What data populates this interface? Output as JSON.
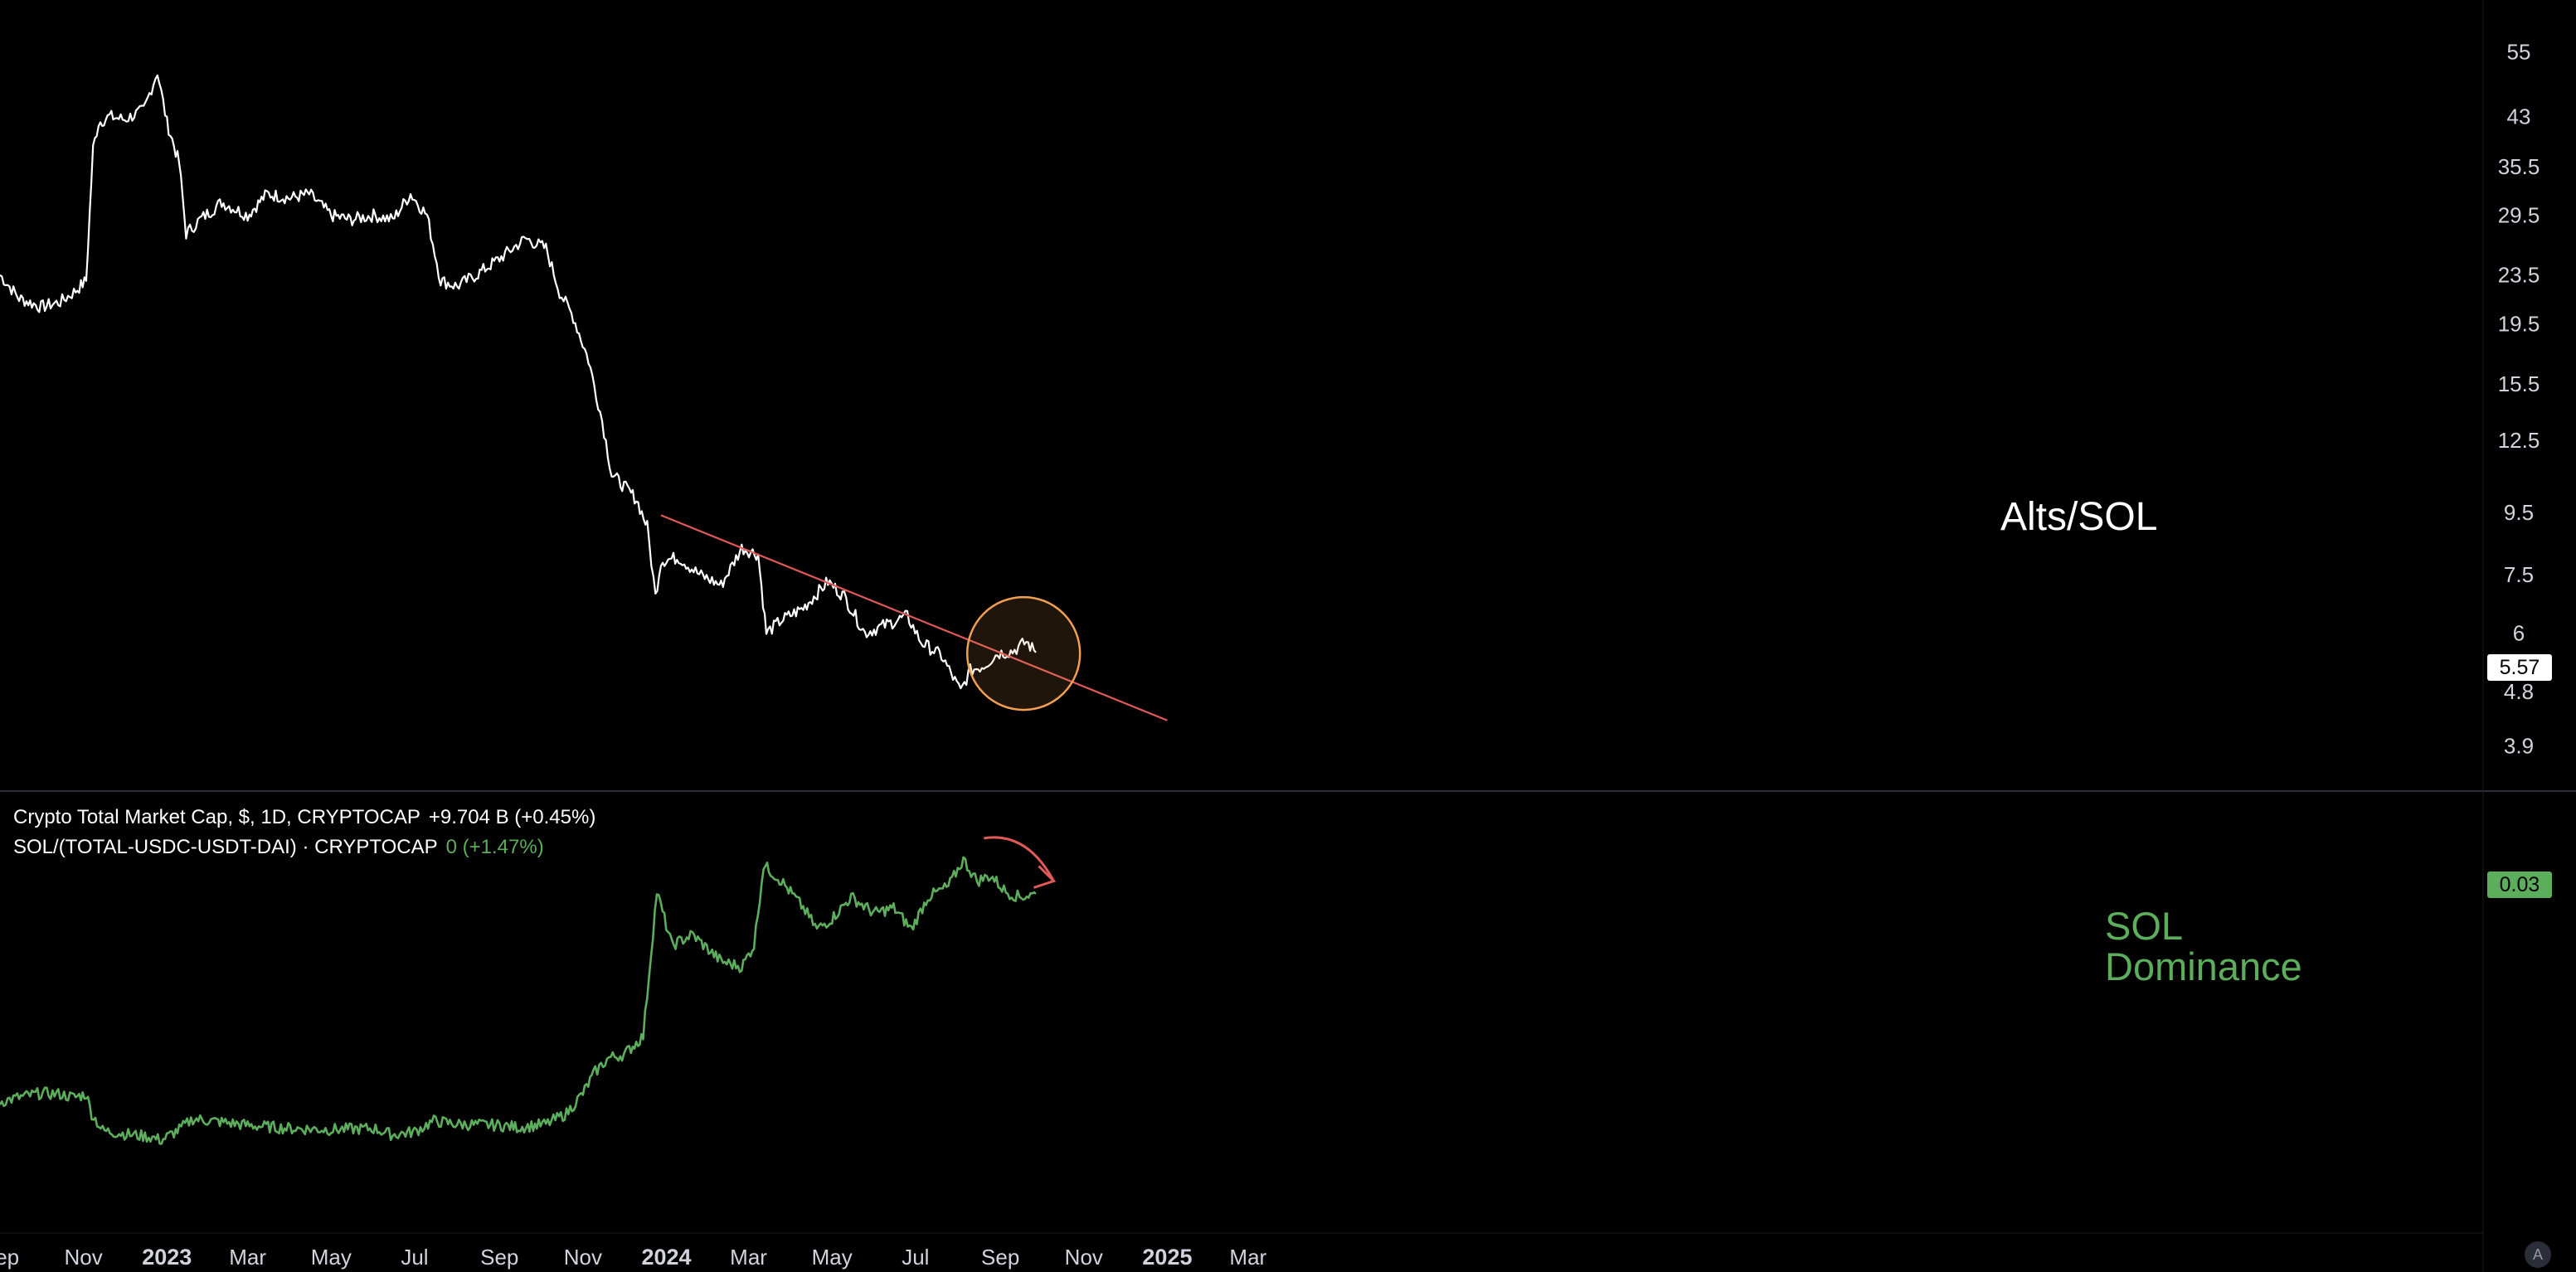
{
  "chart_data": [
    {
      "type": "line",
      "title": "Alts/SOL",
      "scale": "log",
      "ylim": [
        3.6,
        60
      ],
      "y_ticks": [
        "55",
        "43",
        "35.5",
        "29.5",
        "23.5",
        "19.5",
        "15.5",
        "12.5",
        "9.5",
        "7.5",
        "6",
        "4.8",
        "3.9"
      ],
      "last_value_label": "5.57",
      "x_start": "2022-09",
      "series": [
        {
          "name": "Crypto Total Market Cap, $, 1D, CRYPTOCAP",
          "color": "#ffffff",
          "points": [
            [
              "2022-09-01",
              23.5
            ],
            [
              "2022-09-15",
              21.5
            ],
            [
              "2022-10-01",
              20.8
            ],
            [
              "2022-10-15",
              21.2
            ],
            [
              "2022-10-25",
              22.0
            ],
            [
              "2022-11-03",
              23.0
            ],
            [
              "2022-11-08",
              38.0
            ],
            [
              "2022-11-12",
              42.0
            ],
            [
              "2022-11-20",
              43.0
            ],
            [
              "2022-12-01",
              42.5
            ],
            [
              "2022-12-15",
              44.0
            ],
            [
              "2022-12-25",
              51.0
            ],
            [
              "2023-01-01",
              42.0
            ],
            [
              "2023-01-10",
              36.0
            ],
            [
              "2023-01-15",
              27.5
            ],
            [
              "2023-01-25",
              29.0
            ],
            [
              "2023-02-10",
              31.0
            ],
            [
              "2023-03-01",
              29.5
            ],
            [
              "2023-03-15",
              32.0
            ],
            [
              "2023-04-01",
              31.5
            ],
            [
              "2023-04-15",
              32.0
            ],
            [
              "2023-05-01",
              29.5
            ],
            [
              "2023-05-15",
              29.0
            ],
            [
              "2023-06-01",
              29.5
            ],
            [
              "2023-06-15",
              29.0
            ],
            [
              "2023-06-28",
              32.0
            ],
            [
              "2023-07-10",
              29.5
            ],
            [
              "2023-07-20",
              23.0
            ],
            [
              "2023-08-01",
              22.5
            ],
            [
              "2023-08-15",
              23.5
            ],
            [
              "2023-09-01",
              25.0
            ],
            [
              "2023-09-20",
              27.0
            ],
            [
              "2023-10-05",
              26.0
            ],
            [
              "2023-10-15",
              22.0
            ],
            [
              "2023-10-25",
              20.0
            ],
            [
              "2023-11-05",
              17.0
            ],
            [
              "2023-11-15",
              13.5
            ],
            [
              "2023-11-22",
              11.0
            ],
            [
              "2023-12-01",
              10.5
            ],
            [
              "2023-12-10",
              10.0
            ],
            [
              "2023-12-18",
              9.0
            ],
            [
              "2023-12-24",
              6.9
            ],
            [
              "2023-12-28",
              7.9
            ],
            [
              "2024-01-10",
              8.0
            ],
            [
              "2024-01-25",
              7.5
            ],
            [
              "2024-02-10",
              7.2
            ],
            [
              "2024-02-25",
              8.3
            ],
            [
              "2024-03-08",
              8.1
            ],
            [
              "2024-03-14",
              6.0
            ],
            [
              "2024-03-25",
              6.3
            ],
            [
              "2024-04-10",
              6.6
            ],
            [
              "2024-04-28",
              7.3
            ],
            [
              "2024-05-10",
              6.9
            ],
            [
              "2024-05-25",
              6.0
            ],
            [
              "2024-06-10",
              6.2
            ],
            [
              "2024-06-25",
              6.4
            ],
            [
              "2024-07-05",
              5.8
            ],
            [
              "2024-07-20",
              5.5
            ],
            [
              "2024-08-03",
              4.8
            ],
            [
              "2024-08-10",
              5.2
            ],
            [
              "2024-08-20",
              5.3
            ],
            [
              "2024-08-30",
              5.55
            ],
            [
              "2024-09-10",
              5.6
            ],
            [
              "2024-09-20",
              5.8
            ],
            [
              "2024-09-27",
              5.57
            ]
          ]
        }
      ],
      "trendline": {
        "color": "#e05a5a",
        "from": [
          "2023-12-28",
          9.4
        ],
        "to": [
          "2025-01-01",
          4.3
        ]
      },
      "highlight_circle": {
        "center": [
          "2024-09-18",
          5.55
        ],
        "color": "#f0a050"
      }
    },
    {
      "type": "line",
      "title": "SOL Dominance",
      "title_lines": [
        "SOL",
        "Dominance"
      ],
      "ylim": [
        0,
        0.036
      ],
      "last_value_label": "0.03",
      "series": [
        {
          "name": "SOL/(TOTAL-USDC-USDT-DAI) · CRYPTOCAP",
          "color": "#5cad5c",
          "points": [
            [
              "2022-09-01",
              0.0094
            ],
            [
              "2022-09-15",
              0.0098
            ],
            [
              "2022-10-01",
              0.0102
            ],
            [
              "2022-10-15",
              0.0101
            ],
            [
              "2022-10-25",
              0.0098
            ],
            [
              "2022-11-03",
              0.0101
            ],
            [
              "2022-11-07",
              0.0083
            ],
            [
              "2022-11-15",
              0.0067
            ],
            [
              "2022-12-01",
              0.0064
            ],
            [
              "2022-12-20",
              0.0061
            ],
            [
              "2022-12-28",
              0.0058
            ],
            [
              "2023-01-10",
              0.0068
            ],
            [
              "2023-01-20",
              0.0078
            ],
            [
              "2023-02-10",
              0.0075
            ],
            [
              "2023-03-01",
              0.0072
            ],
            [
              "2023-04-01",
              0.0069
            ],
            [
              "2023-05-01",
              0.0068
            ],
            [
              "2023-06-01",
              0.0069
            ],
            [
              "2023-06-15",
              0.0063
            ],
            [
              "2023-07-01",
              0.0066
            ],
            [
              "2023-07-15",
              0.0076
            ],
            [
              "2023-08-01",
              0.0073
            ],
            [
              "2023-09-01",
              0.0072
            ],
            [
              "2023-09-15",
              0.007
            ],
            [
              "2023-10-05",
              0.0073
            ],
            [
              "2023-10-20",
              0.0083
            ],
            [
              "2023-11-01",
              0.0102
            ],
            [
              "2023-11-10",
              0.0122
            ],
            [
              "2023-11-20",
              0.0135
            ],
            [
              "2023-12-01",
              0.0138
            ],
            [
              "2023-12-15",
              0.0155
            ],
            [
              "2023-12-25",
              0.029
            ],
            [
              "2024-01-05",
              0.024
            ],
            [
              "2024-01-20",
              0.025
            ],
            [
              "2024-02-10",
              0.0225
            ],
            [
              "2024-02-25",
              0.022
            ],
            [
              "2024-03-05",
              0.024
            ],
            [
              "2024-03-12",
              0.0315
            ],
            [
              "2024-03-25",
              0.03
            ],
            [
              "2024-04-10",
              0.0275
            ],
            [
              "2024-04-20",
              0.0255
            ],
            [
              "2024-05-01",
              0.0265
            ],
            [
              "2024-05-15",
              0.0285
            ],
            [
              "2024-06-01",
              0.027
            ],
            [
              "2024-06-15",
              0.0275
            ],
            [
              "2024-06-28",
              0.0255
            ],
            [
              "2024-07-10",
              0.0285
            ],
            [
              "2024-07-25",
              0.0295
            ],
            [
              "2024-08-05",
              0.032
            ],
            [
              "2024-08-15",
              0.03
            ],
            [
              "2024-08-25",
              0.0305
            ],
            [
              "2024-09-05",
              0.029
            ],
            [
              "2024-09-15",
              0.0285
            ],
            [
              "2024-09-27",
              0.0288
            ]
          ]
        }
      ],
      "arrow": {
        "color": "#e05a5a",
        "from": [
          "2024-08-20",
          0.034
        ],
        "to": [
          "2024-10-10",
          0.03
        ]
      }
    }
  ],
  "x_axis": {
    "ticks": [
      {
        "date": "2022-09-01",
        "label": "Sep"
      },
      {
        "date": "2022-11-01",
        "label": "Nov"
      },
      {
        "date": "2023-01-01",
        "label": "2023",
        "bold": true
      },
      {
        "date": "2023-03-01",
        "label": "Mar"
      },
      {
        "date": "2023-05-01",
        "label": "May"
      },
      {
        "date": "2023-07-01",
        "label": "Jul"
      },
      {
        "date": "2023-09-01",
        "label": "Sep"
      },
      {
        "date": "2023-11-01",
        "label": "Nov"
      },
      {
        "date": "2024-01-01",
        "label": "2024",
        "bold": true
      },
      {
        "date": "2024-03-01",
        "label": "Mar"
      },
      {
        "date": "2024-05-01",
        "label": "May"
      },
      {
        "date": "2024-07-01",
        "label": "Jul"
      },
      {
        "date": "2024-09-01",
        "label": "Sep"
      },
      {
        "date": "2024-11-01",
        "label": "Nov"
      },
      {
        "date": "2025-01-01",
        "label": "2025",
        "bold": true
      },
      {
        "date": "2025-03-01",
        "label": "Mar"
      }
    ]
  },
  "legend": {
    "line1": {
      "name": "Crypto Total Market Cap, $, 1D, CRYPTOCAP",
      "change": "+9.704 B (+0.45%)"
    },
    "line2": {
      "name": "SOL/(TOTAL-USDC-USDT-DAI) · CRYPTOCAP",
      "change": "0 (+1.47%)"
    }
  },
  "auto_button_label": "A",
  "colors": {
    "background": "#000000",
    "main_line": "#ffffff",
    "dominance_line": "#5cad5c",
    "trend": "#e05a5a",
    "circle": "#f0a050"
  }
}
